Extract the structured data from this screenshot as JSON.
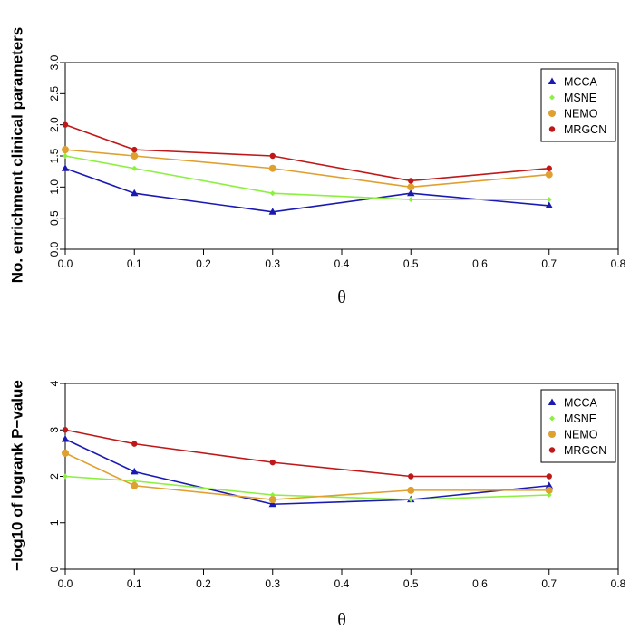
{
  "chart_data": [
    {
      "type": "line",
      "title": "",
      "xlabel": "θ",
      "ylabel": "No. enrichment clinical parameters",
      "x": [
        0.0,
        0.1,
        0.3,
        0.5,
        0.7
      ],
      "xlim": [
        0,
        0.8
      ],
      "ylim": [
        0,
        3
      ],
      "xticks": [
        "0.0",
        "0.1",
        "0.2",
        "0.3",
        "0.4",
        "0.5",
        "0.6",
        "0.7",
        "0.8"
      ],
      "yticks": [
        "0.0",
        "0.5",
        "1.0",
        "1.5",
        "2.0",
        "2.5",
        "3.0"
      ],
      "legend_position": "top-right",
      "series": [
        {
          "name": "MCCA",
          "color": "#1a1ab3",
          "marker": "triangle",
          "values": [
            1.3,
            0.9,
            0.6,
            0.9,
            0.7
          ]
        },
        {
          "name": "MSNE",
          "color": "#8cf040",
          "marker": "diamond",
          "values": [
            1.5,
            1.3,
            0.9,
            0.8,
            0.8
          ]
        },
        {
          "name": "NEMO",
          "color": "#e0a030",
          "marker": "circle",
          "values": [
            1.6,
            1.5,
            1.3,
            1.0,
            1.2
          ]
        },
        {
          "name": "MRGCN",
          "color": "#c01818",
          "marker": "dot",
          "values": [
            2.0,
            1.6,
            1.5,
            1.1,
            1.3
          ]
        }
      ]
    },
    {
      "type": "line",
      "title": "",
      "xlabel": "θ",
      "ylabel": "−log10 of logrank P−value",
      "x": [
        0.0,
        0.1,
        0.3,
        0.5,
        0.7
      ],
      "xlim": [
        0,
        0.8
      ],
      "ylim": [
        0,
        4
      ],
      "xticks": [
        "0.0",
        "0.1",
        "0.2",
        "0.3",
        "0.4",
        "0.5",
        "0.6",
        "0.7",
        "0.8"
      ],
      "yticks": [
        "0",
        "1",
        "2",
        "3",
        "4"
      ],
      "legend_position": "top-right",
      "series": [
        {
          "name": "MCCA",
          "color": "#1a1ab3",
          "marker": "triangle",
          "values": [
            2.8,
            2.1,
            1.4,
            1.5,
            1.8
          ]
        },
        {
          "name": "MSNE",
          "color": "#8cf040",
          "marker": "diamond",
          "values": [
            2.0,
            1.9,
            1.6,
            1.5,
            1.6
          ]
        },
        {
          "name": "NEMO",
          "color": "#e0a030",
          "marker": "circle",
          "values": [
            2.5,
            1.8,
            1.5,
            1.7,
            1.7
          ]
        },
        {
          "name": "MRGCN",
          "color": "#c01818",
          "marker": "dot",
          "values": [
            3.0,
            2.7,
            2.3,
            2.0,
            2.0
          ]
        }
      ]
    }
  ]
}
